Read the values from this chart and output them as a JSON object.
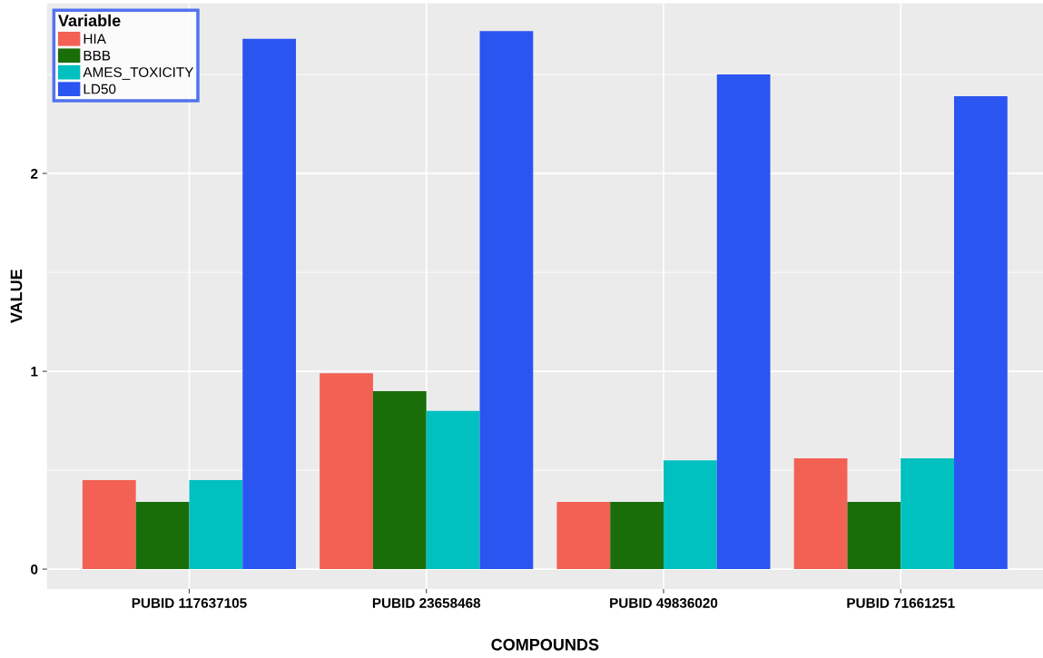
{
  "chart_data": {
    "type": "bar",
    "xlabel": "COMPOUNDS",
    "ylabel": "VALUE",
    "legend_title": "Variable",
    "categories": [
      "PUBID 117637105",
      "PUBID 23658468",
      "PUBID 49836020",
      "PUBID 71661251"
    ],
    "series": [
      {
        "name": "HIA",
        "color": "#f26153",
        "values": [
          0.45,
          0.99,
          0.34,
          0.56
        ]
      },
      {
        "name": "BBB",
        "color": "#1a6e0a",
        "values": [
          0.34,
          0.9,
          0.34,
          0.34
        ]
      },
      {
        "name": "AMES_TOXICITY",
        "color": "#00c0c0",
        "values": [
          0.45,
          0.8,
          0.55,
          0.56
        ]
      },
      {
        "name": "LD50",
        "color": "#2b55f0",
        "values": [
          2.68,
          2.72,
          2.5,
          2.39
        ]
      }
    ],
    "ylim": [
      -0.1,
      2.86
    ],
    "yticks": [
      0,
      {
        "value": 0.5,
        "label": null
      },
      1,
      {
        "value": 1.5,
        "label": null
      },
      2,
      {
        "value": 2.5,
        "label": null
      }
    ],
    "grid": true,
    "legend": "top left"
  }
}
